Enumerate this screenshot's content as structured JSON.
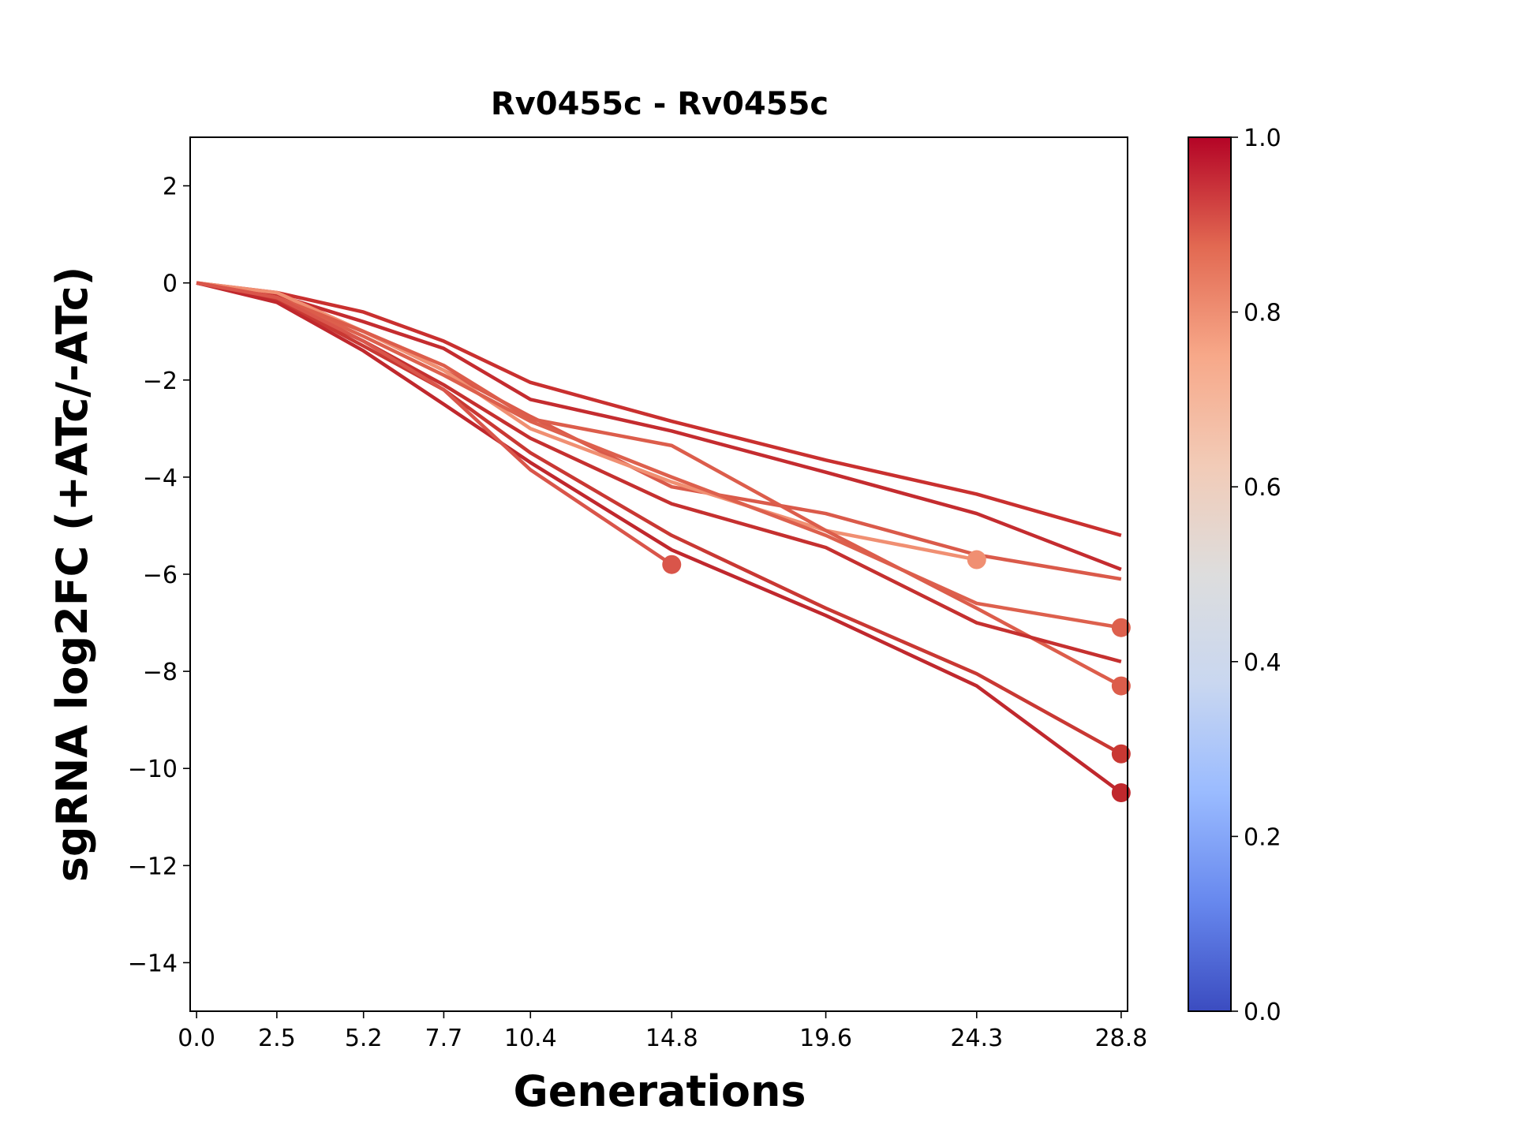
{
  "chart_data": {
    "type": "line",
    "title": "Rv0455c - Rv0455c",
    "xlabel": "Generations",
    "ylabel": "sgRNA log2FC (+ATc/-ATc)",
    "xlim": [
      -0.2,
      29.0
    ],
    "ylim": [
      -15,
      3
    ],
    "x_ticks": [
      0.0,
      2.5,
      5.2,
      7.7,
      10.4,
      14.8,
      19.6,
      24.3,
      28.8
    ],
    "x_tick_labels": [
      "0.0",
      "2.5",
      "5.2",
      "7.7",
      "10.4",
      "14.8",
      "19.6",
      "24.3",
      "28.8"
    ],
    "y_ticks": [
      2,
      0,
      -2,
      -4,
      -6,
      -8,
      -10,
      -12,
      -14
    ],
    "y_tick_labels": [
      "2",
      "0",
      "−2",
      "−4",
      "−6",
      "−8",
      "−10",
      "−12",
      "−14"
    ],
    "grid": false,
    "colormap": "coolwarm",
    "colorbar": {
      "range": [
        0.0,
        1.0
      ],
      "ticks": [
        0.0,
        0.2,
        0.4,
        0.6,
        0.8,
        1.0
      ],
      "tick_labels": [
        "0.0",
        "0.2",
        "0.4",
        "0.6",
        "0.8",
        "1.0"
      ],
      "colors": [
        "#3b4cc0",
        "#6788ee",
        "#9abbff",
        "#c9d7f0",
        "#dddddd",
        "#f2cbb7",
        "#f7a889",
        "#e26952",
        "#b40426"
      ]
    },
    "series": [
      {
        "values": [
          0,
          -0.2,
          -0.6,
          -1.2,
          -2.05,
          -2.85,
          -3.65,
          -4.35,
          -5.2
        ],
        "color": "#c9302f",
        "end_marker": false
      },
      {
        "values": [
          0,
          -0.25,
          -0.8,
          -1.35,
          -2.4,
          -3.05,
          -3.9,
          -4.75,
          -5.9
        ],
        "color": "#c42c2f",
        "end_marker": false
      },
      {
        "values": [
          0,
          -0.3,
          -1.0,
          -1.8,
          -2.75,
          -4.2,
          -4.75,
          -5.6,
          -6.1
        ],
        "color": "#da5a4a",
        "end_marker": false
      },
      {
        "values": [
          0,
          -0.2,
          -1.0,
          -1.8,
          -3.0,
          -4.1,
          -5.1,
          -5.7
        ],
        "color": "#f08f72",
        "end_marker": true
      },
      {
        "values": [
          0,
          -0.3,
          -1.1,
          -1.9,
          -2.85,
          -4.0,
          -5.2,
          -6.6,
          -7.1
        ],
        "color": "#dd604d",
        "end_marker": true
      },
      {
        "values": [
          0,
          -0.3,
          -1.0,
          -1.7,
          -2.8,
          -3.35,
          -5.1,
          -6.7,
          -8.3
        ],
        "color": "#dc5d4b",
        "end_marker": true
      },
      {
        "values": [
          0,
          -0.35,
          -1.2,
          -2.1,
          -3.2,
          -4.55,
          -5.45,
          -7.0,
          -7.8
        ],
        "color": "#c5302f",
        "end_marker": false
      },
      {
        "values": [
          0,
          -0.35,
          -1.3,
          -2.2,
          -3.5,
          -5.2,
          -6.7,
          -8.05,
          -9.7
        ],
        "color": "#c93833",
        "end_marker": true
      },
      {
        "values": [
          0,
          -0.4,
          -1.4,
          -2.5,
          -3.7,
          -5.5,
          -6.85,
          -8.3,
          -10.5
        ],
        "color": "#c0282d",
        "end_marker": true
      },
      {
        "values": [
          0,
          -0.3,
          -1.2,
          -2.2,
          -3.85,
          -5.8
        ],
        "color": "#d9554a",
        "end_marker": true
      }
    ]
  }
}
